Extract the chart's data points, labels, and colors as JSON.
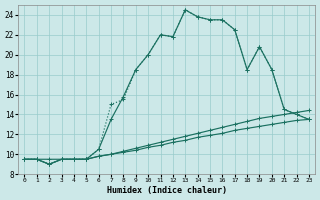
{
  "xlabel": "Humidex (Indice chaleur)",
  "bg_color": "#cce8e8",
  "grid_color": "#99cccc",
  "line_color": "#1a7060",
  "xlim": [
    -0.5,
    23.5
  ],
  "ylim": [
    8,
    25
  ],
  "xticks": [
    0,
    1,
    2,
    3,
    4,
    5,
    6,
    7,
    8,
    9,
    10,
    11,
    12,
    13,
    14,
    15,
    16,
    17,
    18,
    19,
    20,
    21,
    22,
    23
  ],
  "yticks": [
    8,
    10,
    12,
    14,
    16,
    18,
    20,
    22,
    24
  ],
  "lines": [
    {
      "x": [
        0,
        1,
        2,
        3,
        4,
        5,
        6,
        7,
        8,
        9,
        10,
        11,
        12,
        13,
        14,
        15,
        16,
        17,
        18,
        19,
        20,
        21,
        22,
        23
      ],
      "y": [
        9.5,
        9.5,
        9.5,
        9.5,
        9.5,
        9.5,
        9.8,
        10.0,
        10.2,
        10.4,
        10.7,
        10.9,
        11.2,
        11.4,
        11.7,
        11.9,
        12.1,
        12.4,
        12.6,
        12.8,
        13.0,
        13.2,
        13.4,
        13.5
      ],
      "ls": "-",
      "marker": true
    },
    {
      "x": [
        0,
        1,
        2,
        3,
        4,
        5,
        6,
        7,
        8,
        9,
        10,
        11,
        12,
        13,
        14,
        15,
        16,
        17,
        18,
        19,
        20,
        21,
        22,
        23
      ],
      "y": [
        9.5,
        9.5,
        9.0,
        9.5,
        9.5,
        9.5,
        9.8,
        10.0,
        10.3,
        10.6,
        10.9,
        11.2,
        11.5,
        11.8,
        12.1,
        12.4,
        12.7,
        13.0,
        13.3,
        13.6,
        13.8,
        14.0,
        14.2,
        14.4
      ],
      "ls": "-",
      "marker": true
    },
    {
      "x": [
        0,
        1,
        2,
        3,
        4,
        5,
        6,
        7,
        8,
        9,
        10,
        11,
        12,
        13,
        14,
        15,
        16,
        17,
        18,
        19,
        20,
        21,
        22,
        23
      ],
      "y": [
        9.5,
        9.5,
        9.0,
        9.5,
        9.5,
        9.5,
        10.5,
        15.0,
        15.5,
        18.5,
        20.0,
        22.0,
        21.8,
        24.5,
        23.8,
        23.5,
        23.5,
        22.5,
        18.5,
        20.8,
        18.5,
        14.5,
        14.0,
        13.5
      ],
      "ls": "dotted",
      "marker": true
    },
    {
      "x": [
        0,
        1,
        2,
        3,
        4,
        5,
        6,
        7,
        8,
        9,
        10,
        11,
        12,
        13,
        14,
        15,
        16,
        17,
        18,
        19,
        20,
        21,
        22,
        23
      ],
      "y": [
        9.5,
        9.5,
        9.0,
        9.5,
        9.5,
        9.5,
        10.5,
        13.5,
        15.8,
        18.5,
        20.0,
        22.0,
        21.8,
        24.5,
        23.8,
        23.5,
        23.5,
        22.5,
        18.5,
        20.8,
        18.5,
        14.5,
        14.0,
        13.5
      ],
      "ls": "-",
      "marker": true
    }
  ]
}
